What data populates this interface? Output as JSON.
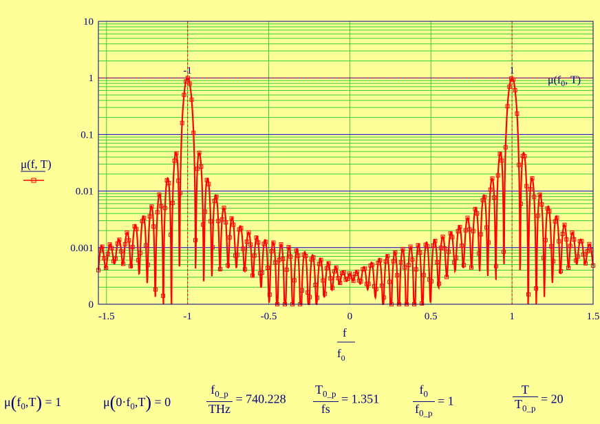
{
  "chart_data": {
    "type": "line",
    "xlabel_num": "f",
    "xlabel_den": "f",
    "xlabel_den_sub": "0",
    "ylabel": "μ(f, T)",
    "marker_label": "μ(f",
    "marker_label_sub": "0",
    "marker_label_tail": ", T)",
    "scale": "log",
    "xlim": [
      -1.55,
      1.5
    ],
    "ylim_decades": [
      "0",
      "0.001",
      "0.01",
      "0.1",
      "1",
      "10"
    ],
    "x_ticks": [
      "-1.5",
      "-1",
      "-0.5",
      "0",
      "0.5",
      "1",
      "1.5"
    ],
    "x_tick_values": [
      -1.5,
      -1,
      -0.5,
      0,
      0.5,
      1,
      1.5
    ],
    "marker_positions": [
      -1,
      1
    ],
    "marker_labels": [
      "-1",
      "1"
    ],
    "marker_y": 1,
    "peaks": [
      -1,
      1
    ],
    "peak_value": 1,
    "T_over_T0p": 20,
    "series_color": "#ff0000",
    "grid_major_color": "#0000cc",
    "grid_minor_color": "#33cc33",
    "marker_line_color": "#ff0000"
  },
  "readouts": {
    "r1_lhs": "μ",
    "r1_sub": "0",
    "r1_rhs": "= 1",
    "r2_lhs": "μ",
    "r2_rhs": "= 0",
    "r3_num": "f",
    "r3_num_sub": "0_p",
    "r3_den": "THz",
    "r3_rhs": "= 740.228",
    "r4_num": "T",
    "r4_num_sub": "0_p",
    "r4_den": "fs",
    "r4_rhs": "= 1.351",
    "r5_num": "f",
    "r5_num_sub": "0",
    "r5_den": "f",
    "r5_den_sub": "0_p",
    "r5_rhs": "= 1",
    "r6_num": "T",
    "r6_den": "T",
    "r6_den_sub": "0_p",
    "r6_rhs": "= 20"
  }
}
